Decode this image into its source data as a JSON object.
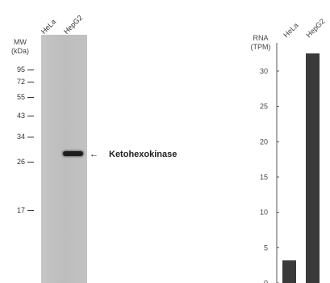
{
  "western_blot": {
    "mw_axis_title_line1": "MW",
    "mw_axis_title_line2": "(kDa)",
    "lanes": [
      "HeLa",
      "HepG2"
    ],
    "markers": [
      "95",
      "72",
      "55",
      "43",
      "34",
      "26",
      "17"
    ],
    "band_arrow": "←",
    "band_label": "Ketohexokinase"
  },
  "chart_data": {
    "type": "bar",
    "ylabel_line1": "RNA",
    "ylabel_line2": "(TPM)",
    "categories": [
      "HeLa",
      "HepG2"
    ],
    "values": [
      3.2,
      32.5
    ],
    "ylim": [
      0,
      34
    ],
    "yticks": [
      0,
      5,
      10,
      15,
      20,
      25,
      30
    ],
    "bar_color": "#3a3a3a",
    "grid": false
  }
}
